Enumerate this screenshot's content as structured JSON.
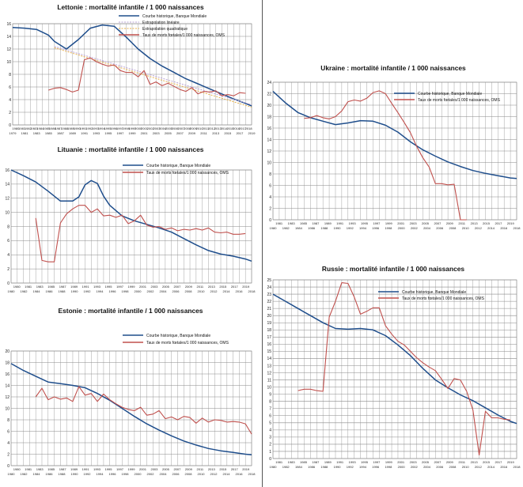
{
  "chart_data": [
    {
      "id": "lettonie",
      "type": "line",
      "title": "Lettonie : mortalité infantile / 1 000 naissances",
      "ylim": [
        0,
        16
      ],
      "yticks": [
        0,
        2,
        4,
        6,
        8,
        10,
        12,
        14,
        16
      ],
      "xlim": [
        1979,
        2019
      ],
      "xticks_top": [
        "1980",
        "1981",
        "1982",
        "1983",
        "1984",
        "1985",
        "1986",
        "1987",
        "1988",
        "1989",
        "1990",
        "1991",
        "1992",
        "1993",
        "1994",
        "1995",
        "1996",
        "1997",
        "1998",
        "1999",
        "2000",
        "2001",
        "2002",
        "2003",
        "2004",
        "2005",
        "2006",
        "2007",
        "2008",
        "2009",
        "2010",
        "2011",
        "2012",
        "2013",
        "2014",
        "2015",
        "2016",
        "2017",
        "2018"
      ],
      "xticks_bottom": [
        "1979",
        "1981",
        "1983",
        "1985",
        "1987",
        "1989",
        "1991",
        "1993",
        "1995",
        "1997",
        "1999",
        "2001",
        "2003",
        "2005",
        "2007",
        "2009",
        "2011",
        "2013",
        "2015",
        "2017",
        "2019"
      ],
      "legend": [
        "Courbe historique, Banque Mondiale",
        "Extrapolation linéaire",
        "Extrapolation quadratique",
        "Taux de morts fœtales/1 000 naissances, OMS"
      ],
      "series": [
        {
          "name": "Courbe historique, Banque Mondiale",
          "color": "#1f4e8c",
          "x": [
            1979,
            1981,
            1983,
            1985,
            1986,
            1988,
            1990,
            1992,
            1994,
            1996,
            1998,
            2000,
            2002,
            2004,
            2006,
            2008,
            2010,
            2012,
            2014,
            2016,
            2018,
            2019
          ],
          "y": [
            15.4,
            15.3,
            15.1,
            14.2,
            13.2,
            12.0,
            13.5,
            15.3,
            15.8,
            15.6,
            13.9,
            12.0,
            10.5,
            9.3,
            8.3,
            7.3,
            6.5,
            5.7,
            4.9,
            4.1,
            3.4,
            3.0
          ]
        },
        {
          "name": "Extrapolation linéaire",
          "color": "#b8a2d6",
          "x": [
            1986,
            2019
          ],
          "y": [
            12.4,
            3.2
          ]
        },
        {
          "name": "Extrapolation quadratique",
          "color": "#e7b04a",
          "x": [
            1986,
            2019
          ],
          "y": [
            12.2,
            2.8
          ]
        },
        {
          "name": "Taux de morts fœtales/1 000 naissances, OMS",
          "color": "#c0504d",
          "x": [
            1985,
            1986,
            1987,
            1988,
            1989,
            1990,
            1991,
            1992,
            1993,
            1994,
            1995,
            1996,
            1997,
            1998,
            1999,
            2000,
            2001,
            2002,
            2003,
            2004,
            2005,
            2006,
            2007,
            2008,
            2009,
            2010,
            2011,
            2012,
            2013,
            2014,
            2015,
            2016,
            2017,
            2018
          ],
          "y": [
            5.5,
            5.8,
            5.9,
            5.6,
            5.2,
            5.5,
            10.3,
            10.6,
            10.0,
            9.6,
            9.3,
            9.5,
            8.6,
            8.3,
            8.3,
            7.6,
            8.6,
            6.4,
            6.8,
            6.2,
            6.6,
            6.1,
            5.6,
            5.3,
            5.9,
            4.9,
            5.3,
            5.2,
            5.4,
            4.6,
            4.8,
            4.6,
            5.1,
            5.0
          ]
        }
      ]
    },
    {
      "id": "lituanie",
      "type": "line",
      "title": "Lituanie : mortalité infantile / 1 000 naissances",
      "ylim": [
        0,
        16
      ],
      "yticks": [
        0,
        2,
        4,
        6,
        8,
        10,
        12,
        14,
        16
      ],
      "xlim": [
        1980,
        2019
      ],
      "xticks_top": [
        "1980",
        "1981",
        "1983",
        "1985",
        "1987",
        "1989",
        "1991",
        "1993",
        "1995",
        "1997",
        "1999",
        "2001",
        "2003",
        "2005",
        "2007",
        "2009",
        "2011",
        "2013",
        "2015",
        "2017",
        "2019"
      ],
      "xticks_bottom": [
        "1980",
        "1982",
        "1984",
        "1986",
        "1988",
        "1990",
        "1992",
        "1994",
        "1996",
        "1998",
        "2000",
        "2002",
        "2004",
        "2006",
        "2008",
        "2010",
        "2012",
        "2014",
        "2016",
        "2018"
      ],
      "legend": [
        "Courbe historique, Banque Mondiale",
        "Taux de morts fœtales/1 000 naissances, OMS"
      ],
      "series": [
        {
          "name": "Courbe historique, Banque Mondiale",
          "color": "#1f4e8c",
          "x": [
            1980,
            1982,
            1984,
            1986,
            1988,
            1990,
            1991,
            1992,
            1993,
            1994,
            1995,
            1996,
            1998,
            2000,
            2002,
            2004,
            2006,
            2008,
            2010,
            2012,
            2014,
            2016,
            2018,
            2019
          ],
          "y": [
            16.0,
            15.2,
            14.3,
            13.0,
            11.6,
            11.6,
            12.2,
            13.9,
            14.5,
            14.1,
            12.3,
            11.0,
            9.5,
            8.8,
            8.3,
            7.8,
            7.2,
            6.3,
            5.4,
            4.6,
            4.1,
            3.8,
            3.4,
            3.1
          ]
        },
        {
          "name": "Taux de morts fœtales/1 000 naissances, OMS",
          "color": "#c0504d",
          "x": [
            1984,
            1985,
            1986,
            1987,
            1988,
            1989,
            1990,
            1991,
            1992,
            1993,
            1994,
            1995,
            1996,
            1997,
            1998,
            1999,
            2000,
            2001,
            2002,
            2003,
            2004,
            2005,
            2006,
            2007,
            2008,
            2009,
            2010,
            2011,
            2012,
            2013,
            2014,
            2015,
            2016,
            2017,
            2018
          ],
          "y": [
            9.2,
            3.2,
            3.0,
            3.0,
            8.5,
            9.8,
            10.5,
            11.0,
            11.0,
            10.0,
            10.5,
            9.5,
            9.6,
            9.3,
            9.6,
            8.4,
            8.8,
            9.6,
            8.2,
            7.9,
            8.0,
            7.6,
            7.8,
            7.4,
            7.6,
            7.5,
            7.7,
            7.5,
            7.8,
            7.2,
            7.1,
            7.2,
            6.9,
            6.9,
            7.0
          ]
        }
      ]
    },
    {
      "id": "estonie",
      "type": "line",
      "title": "Estonie : mortalité infantile / 1 000 naissances",
      "ylim": [
        0,
        20
      ],
      "yticks": [
        0,
        2,
        4,
        6,
        8,
        10,
        12,
        14,
        16,
        18,
        20
      ],
      "xlim": [
        1980,
        2019
      ],
      "xticks_top": [
        "1980",
        "1981",
        "1983",
        "1985",
        "1987",
        "1989",
        "1991",
        "1993",
        "1995",
        "1997",
        "1999",
        "2001",
        "2003",
        "2005",
        "2007",
        "2009",
        "2011",
        "2013",
        "2015",
        "2017",
        "2019"
      ],
      "xticks_bottom": [
        "1980",
        "1982",
        "1984",
        "1986",
        "1988",
        "1990",
        "1992",
        "1994",
        "1996",
        "1998",
        "2000",
        "2002",
        "2004",
        "2006",
        "2008",
        "2010",
        "2012",
        "2014",
        "2016",
        "2018"
      ],
      "legend": [
        "Courbe historique, Banque Mondiale",
        "Taux de morts fœtales/1 000 naissances, OMS"
      ],
      "series": [
        {
          "name": "Courbe historique, Banque Mondiale",
          "color": "#1f4e8c",
          "x": [
            1980,
            1982,
            1984,
            1986,
            1988,
            1990,
            1992,
            1994,
            1996,
            1998,
            2000,
            2002,
            2004,
            2006,
            2008,
            2010,
            2012,
            2014,
            2016,
            2018,
            2019
          ],
          "y": [
            17.8,
            16.6,
            15.6,
            14.6,
            14.3,
            14.0,
            13.6,
            12.6,
            11.4,
            10.0,
            8.6,
            7.3,
            6.2,
            5.2,
            4.3,
            3.6,
            3.0,
            2.6,
            2.3,
            2.0,
            1.9
          ]
        },
        {
          "name": "Taux de morts fœtales/1 000 naissances, OMS",
          "color": "#c0504d",
          "x": [
            1984,
            1985,
            1986,
            1987,
            1988,
            1989,
            1990,
            1991,
            1992,
            1993,
            1994,
            1995,
            1996,
            1997,
            1998,
            1999,
            2000,
            2001,
            2002,
            2003,
            2004,
            2005,
            2006,
            2007,
            2008,
            2009,
            2010,
            2011,
            2012,
            2013,
            2014,
            2015,
            2016,
            2017,
            2018,
            2019
          ],
          "y": [
            12.0,
            13.5,
            11.5,
            12.0,
            11.6,
            11.8,
            11.2,
            13.8,
            12.3,
            12.6,
            11.2,
            12.5,
            11.5,
            10.8,
            10.2,
            9.8,
            9.6,
            10.2,
            8.8,
            9.0,
            9.6,
            8.2,
            8.5,
            8.0,
            8.6,
            8.4,
            7.4,
            8.3,
            7.6,
            8.0,
            7.9,
            7.6,
            7.7,
            7.6,
            7.3,
            5.5
          ]
        }
      ]
    },
    {
      "id": "ukraine",
      "type": "line",
      "title": "Ukraine : mortalité infantile / 1 000 naissances",
      "ylim": [
        0,
        24
      ],
      "yticks": [
        0,
        2,
        4,
        6,
        8,
        10,
        12,
        14,
        16,
        18,
        20,
        22,
        24
      ],
      "xlim": [
        1980,
        2019
      ],
      "xticks_top": [
        "1981",
        "1983",
        "1985",
        "1987",
        "1989",
        "1991",
        "1993",
        "1995",
        "1997",
        "1999",
        "2001",
        "2003",
        "2005",
        "2007",
        "2009",
        "2011",
        "2013",
        "2015",
        "2017",
        "2019"
      ],
      "xticks_bottom": [
        "1980",
        "1982",
        "1984",
        "1986",
        "1988",
        "1990",
        "1992",
        "1994",
        "1996",
        "1998",
        "2000",
        "2002",
        "2004",
        "2006",
        "2008",
        "2010",
        "2012",
        "2014",
        "2016",
        "2018"
      ],
      "legend": [
        "Courbe historique, Banque Mondiale",
        "Taux de morts fœtales/1 000 naissances, OMS"
      ],
      "series": [
        {
          "name": "Courbe historique, Banque Mondiale",
          "color": "#1f4e8c",
          "x": [
            1980,
            1982,
            1984,
            1986,
            1988,
            1990,
            1992,
            1994,
            1996,
            1998,
            2000,
            2002,
            2004,
            2006,
            2008,
            2010,
            2012,
            2014,
            2016,
            2018,
            2019
          ],
          "y": [
            22.4,
            20.4,
            18.7,
            17.8,
            17.2,
            16.6,
            16.9,
            17.3,
            17.2,
            16.5,
            15.3,
            13.6,
            12.2,
            11.1,
            10.1,
            9.3,
            8.6,
            8.1,
            7.7,
            7.3,
            7.2
          ]
        },
        {
          "name": "Taux de morts fœtales/1 000 naissances, OMS",
          "color": "#c0504d",
          "x": [
            1985,
            1986,
            1987,
            1988,
            1989,
            1990,
            1991,
            1992,
            1993,
            1994,
            1995,
            1996,
            1997,
            1998,
            1999,
            2000,
            2001,
            2002,
            2003,
            2004,
            2005,
            2006,
            2007,
            2008,
            2009,
            2010,
            2011
          ],
          "y": [
            17.7,
            17.8,
            18.2,
            17.8,
            17.6,
            18.0,
            19.0,
            20.6,
            20.9,
            20.7,
            21.2,
            22.2,
            22.5,
            22.0,
            20.3,
            18.7,
            17.0,
            15.2,
            12.8,
            10.8,
            9.2,
            6.3,
            6.3,
            6.1,
            6.2,
            0.0,
            0.0
          ]
        }
      ]
    },
    {
      "id": "russie",
      "type": "line",
      "title": "Russie : mortalité infantile / 1 000 naissances",
      "ylim": [
        0,
        25
      ],
      "yticks": [
        0,
        1,
        2,
        3,
        4,
        5,
        6,
        7,
        8,
        9,
        10,
        11,
        12,
        13,
        14,
        15,
        16,
        17,
        18,
        19,
        20,
        21,
        22,
        23,
        24,
        25
      ],
      "xlim": [
        1980,
        2019
      ],
      "xticks_top": [
        "1981",
        "1983",
        "1985",
        "1987",
        "1989",
        "1991",
        "1993",
        "1995",
        "1997",
        "1999",
        "2001",
        "2003",
        "2005",
        "2007",
        "2009",
        "2011",
        "2013",
        "2015",
        "2017",
        "2019"
      ],
      "xticks_bottom": [
        "1980",
        "1982",
        "1984",
        "1986",
        "1988",
        "1990",
        "1992",
        "1994",
        "1996",
        "1998",
        "2000",
        "2002",
        "2004",
        "2006",
        "2008",
        "2010",
        "2012",
        "2014",
        "2016",
        "2018"
      ],
      "legend": [
        "Courbe historique, Banque Mondiale",
        "Taux de morts fœtales/1 000 naissances, OMS"
      ],
      "series": [
        {
          "name": "Courbe historique, Banque Mondiale",
          "color": "#1f4e8c",
          "x": [
            1980,
            1982,
            1984,
            1986,
            1988,
            1990,
            1992,
            1994,
            1996,
            1998,
            2000,
            2002,
            2004,
            2006,
            2008,
            2010,
            2012,
            2014,
            2016,
            2018,
            2019
          ],
          "y": [
            23.0,
            22.0,
            21.0,
            20.0,
            19.0,
            18.2,
            18.1,
            18.2,
            18.0,
            17.2,
            15.9,
            14.4,
            12.6,
            11.0,
            9.9,
            8.9,
            8.1,
            7.1,
            6.1,
            5.2,
            4.9
          ]
        },
        {
          "name": "Taux de morts fœtales/1 000 naissances, OMS",
          "color": "#c0504d",
          "x": [
            1984,
            1985,
            1986,
            1987,
            1988,
            1989,
            1990,
            1991,
            1992,
            1993,
            1994,
            1995,
            1996,
            1997,
            1998,
            1999,
            2000,
            2001,
            2002,
            2003,
            2004,
            2005,
            2006,
            2007,
            2008,
            2009,
            2010,
            2011,
            2012,
            2013,
            2014,
            2015,
            2016,
            2017,
            2018
          ],
          "y": [
            9.5,
            9.7,
            9.7,
            9.5,
            9.4,
            19.8,
            22.0,
            24.6,
            24.5,
            22.6,
            20.2,
            20.6,
            21.1,
            21.1,
            18.6,
            17.4,
            16.4,
            15.9,
            15.0,
            14.1,
            13.4,
            12.8,
            12.3,
            11.1,
            9.8,
            11.2,
            11.0,
            9.4,
            6.8,
            0.5,
            6.6,
            5.7,
            5.7,
            5.5,
            5.4
          ]
        }
      ]
    }
  ]
}
